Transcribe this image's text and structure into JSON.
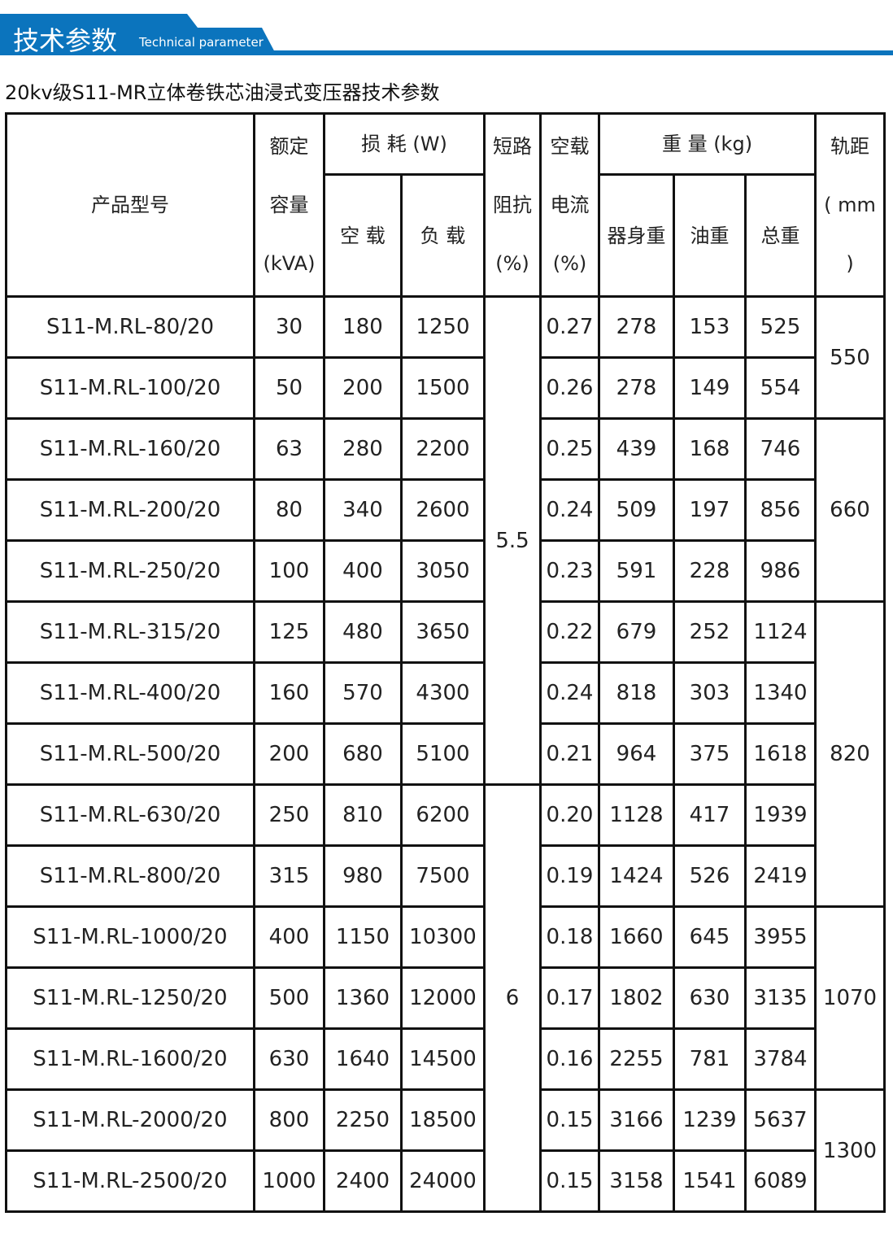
{
  "banner": {
    "title_cn": "技术参数",
    "title_en": "Technical parameter",
    "color": "#0b74bd"
  },
  "subtitle": "20kv级S11-MR立体卷铁芯油浸式变压器技术参数",
  "table": {
    "headers": {
      "model": "产品型号",
      "capacity": [
        "额定",
        "容量",
        "(kVA)"
      ],
      "loss": "损 耗 (W)",
      "loss_noload": "空 载",
      "loss_load": "负 载",
      "impedance": [
        "短路",
        "阻抗",
        "(%)"
      ],
      "current": [
        "空载",
        "电流",
        "(%)"
      ],
      "weight": "重 量 (kg)",
      "body": "器身重",
      "oil": "油重",
      "total": "总重",
      "track": [
        "轨距",
        "( mm",
        ")"
      ]
    },
    "rows": [
      [
        "S11-M.RL-80/20",
        "30",
        "180",
        "1250",
        "0.27",
        "278",
        "153",
        "525"
      ],
      [
        "S11-M.RL-100/20",
        "50",
        "200",
        "1500",
        "0.26",
        "278",
        "149",
        "554"
      ],
      [
        "S11-M.RL-160/20",
        "63",
        "280",
        "2200",
        "0.25",
        "439",
        "168",
        "746"
      ],
      [
        "S11-M.RL-200/20",
        "80",
        "340",
        "2600",
        "0.24",
        "509",
        "197",
        "856"
      ],
      [
        "S11-M.RL-250/20",
        "100",
        "400",
        "3050",
        "0.23",
        "591",
        "228",
        "986"
      ],
      [
        "S11-M.RL-315/20",
        "125",
        "480",
        "3650",
        "0.22",
        "679",
        "252",
        "1124"
      ],
      [
        "S11-M.RL-400/20",
        "160",
        "570",
        "4300",
        "0.24",
        "818",
        "303",
        "1340"
      ],
      [
        "S11-M.RL-500/20",
        "200",
        "680",
        "5100",
        "0.21",
        "964",
        "375",
        "1618"
      ],
      [
        "S11-M.RL-630/20",
        "250",
        "810",
        "6200",
        "0.20",
        "1128",
        "417",
        "1939"
      ],
      [
        "S11-M.RL-800/20",
        "315",
        "980",
        "7500",
        "0.19",
        "1424",
        "526",
        "2419"
      ],
      [
        "S11-M.RL-1000/20",
        "400",
        "1150",
        "10300",
        "0.18",
        "1660",
        "645",
        "3955"
      ],
      [
        "S11-M.RL-1250/20",
        "500",
        "1360",
        "12000",
        "0.17",
        "1802",
        "630",
        "3135"
      ],
      [
        "S11-M.RL-1600/20",
        "630",
        "1640",
        "14500",
        "0.16",
        "2255",
        "781",
        "3784"
      ],
      [
        "S11-M.RL-2000/20",
        "800",
        "2250",
        "18500",
        "0.15",
        "3166",
        "1239",
        "5637"
      ],
      [
        "S11-M.RL-2500/20",
        "1000",
        "2400",
        "24000",
        "0.15",
        "3158",
        "1541",
        "6089"
      ]
    ],
    "impedance_groups": [
      {
        "value": "5.5",
        "rows": 8
      },
      {
        "value": "6",
        "rows": 7
      }
    ],
    "track_groups": [
      {
        "value": "550",
        "rows": 2
      },
      {
        "value": "660",
        "rows": 3
      },
      {
        "value": "820",
        "rows": 5
      },
      {
        "value": "1070",
        "rows": 3
      },
      {
        "value": "1300",
        "rows": 2
      }
    ]
  }
}
